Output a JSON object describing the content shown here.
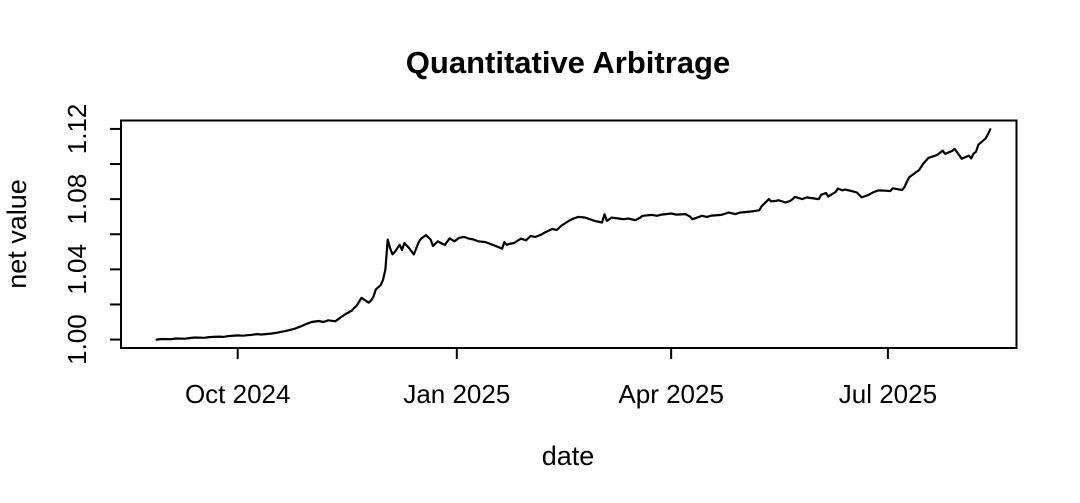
{
  "chart_data": {
    "type": "line",
    "title": "Quantitative Arbitrage",
    "xlabel": "date",
    "ylabel": "net value",
    "grid": false,
    "legend": "none",
    "line_color": "#000000",
    "background_color": "#ffffff",
    "ylim": [
      0.9952,
      1.1248
    ],
    "xlim": [
      "2024-08-13",
      "2025-08-24"
    ],
    "y_ticks": [
      {
        "value": 1.0,
        "label": "1.00"
      },
      {
        "value": 1.02,
        "label": ""
      },
      {
        "value": 1.04,
        "label": "1.04"
      },
      {
        "value": 1.06,
        "label": ""
      },
      {
        "value": 1.08,
        "label": "1.08"
      },
      {
        "value": 1.1,
        "label": ""
      },
      {
        "value": 1.12,
        "label": "1.12"
      }
    ],
    "x_ticks": [
      {
        "date": "2024-10-01",
        "label": "Oct 2024"
      },
      {
        "date": "2025-01-01",
        "label": "Jan 2025"
      },
      {
        "date": "2025-04-01",
        "label": "Apr 2025"
      },
      {
        "date": "2025-07-01",
        "label": "Jul 2025"
      }
    ],
    "series": [
      {
        "name": "net value",
        "points": [
          [
            "2024-08-28",
            1.0
          ],
          [
            "2024-08-30",
            1.0003
          ],
          [
            "2024-09-03",
            1.0002
          ],
          [
            "2024-09-05",
            1.0006
          ],
          [
            "2024-09-09",
            1.0005
          ],
          [
            "2024-09-11",
            1.0009
          ],
          [
            "2024-09-13",
            1.0012
          ],
          [
            "2024-09-17",
            1.001
          ],
          [
            "2024-09-19",
            1.0014
          ],
          [
            "2024-09-23",
            1.0017
          ],
          [
            "2024-09-25",
            1.0015
          ],
          [
            "2024-09-27",
            1.002
          ],
          [
            "2024-10-01",
            1.0024
          ],
          [
            "2024-10-03",
            1.0022
          ],
          [
            "2024-10-07",
            1.0027
          ],
          [
            "2024-10-09",
            1.0031
          ],
          [
            "2024-10-11",
            1.0029
          ],
          [
            "2024-10-15",
            1.0034
          ],
          [
            "2024-10-17",
            1.0038
          ],
          [
            "2024-10-21",
            1.0048
          ],
          [
            "2024-10-23",
            1.0055
          ],
          [
            "2024-10-25",
            1.0062
          ],
          [
            "2024-10-28",
            1.0078
          ],
          [
            "2024-10-30",
            1.009
          ],
          [
            "2024-11-01",
            1.01
          ],
          [
            "2024-11-04",
            1.0106
          ],
          [
            "2024-11-06",
            1.01
          ],
          [
            "2024-11-08",
            1.011
          ],
          [
            "2024-11-11",
            1.0104
          ],
          [
            "2024-11-13",
            1.0124
          ],
          [
            "2024-11-15",
            1.0143
          ],
          [
            "2024-11-18",
            1.0166
          ],
          [
            "2024-11-19",
            1.0181
          ],
          [
            "2024-11-20",
            1.0194
          ],
          [
            "2024-11-22",
            1.0238
          ],
          [
            "2024-11-25",
            1.021
          ],
          [
            "2024-11-26",
            1.0223
          ],
          [
            "2024-11-27",
            1.0245
          ],
          [
            "2024-11-28",
            1.0286
          ],
          [
            "2024-11-30",
            1.031
          ],
          [
            "2024-12-01",
            1.034
          ],
          [
            "2024-12-02",
            1.04
          ],
          [
            "2024-12-03",
            1.057
          ],
          [
            "2024-12-04",
            1.052
          ],
          [
            "2024-12-05",
            1.0485
          ],
          [
            "2024-12-06",
            1.05
          ],
          [
            "2024-12-08",
            1.054
          ],
          [
            "2024-12-09",
            1.051
          ],
          [
            "2024-12-10",
            1.055
          ],
          [
            "2024-12-12",
            1.052
          ],
          [
            "2024-12-14",
            1.0485
          ],
          [
            "2024-12-16",
            1.0555
          ],
          [
            "2024-12-17",
            1.0575
          ],
          [
            "2024-12-19",
            1.0595
          ],
          [
            "2024-12-21",
            1.057
          ],
          [
            "2024-12-22",
            1.0533
          ],
          [
            "2024-12-24",
            1.056
          ],
          [
            "2024-12-26",
            1.0545
          ],
          [
            "2024-12-27",
            1.054
          ],
          [
            "2024-12-29",
            1.0577
          ],
          [
            "2024-12-31",
            1.056
          ],
          [
            "2025-01-02",
            1.058
          ],
          [
            "2025-01-04",
            1.0585
          ],
          [
            "2025-01-06",
            1.0575
          ],
          [
            "2025-01-08",
            1.057
          ],
          [
            "2025-01-10",
            1.056
          ],
          [
            "2025-01-13",
            1.0555
          ],
          [
            "2025-01-15",
            1.0545
          ],
          [
            "2025-01-17",
            1.0535
          ],
          [
            "2025-01-20",
            1.0518
          ],
          [
            "2025-01-21",
            1.0555
          ],
          [
            "2025-01-22",
            1.054
          ],
          [
            "2025-01-23",
            1.0545
          ],
          [
            "2025-01-25",
            1.055
          ],
          [
            "2025-01-28",
            1.0575
          ],
          [
            "2025-01-30",
            1.0565
          ],
          [
            "2025-02-01",
            1.059
          ],
          [
            "2025-02-03",
            1.0585
          ],
          [
            "2025-02-05",
            1.0595
          ],
          [
            "2025-02-07",
            1.061
          ],
          [
            "2025-02-10",
            1.063
          ],
          [
            "2025-02-12",
            1.0625
          ],
          [
            "2025-02-14",
            1.065
          ],
          [
            "2025-02-17",
            1.0676
          ],
          [
            "2025-02-19",
            1.069
          ],
          [
            "2025-02-21",
            1.0699
          ],
          [
            "2025-02-24",
            1.0695
          ],
          [
            "2025-02-26",
            1.0685
          ],
          [
            "2025-02-28",
            1.0676
          ],
          [
            "2025-03-03",
            1.0667
          ],
          [
            "2025-03-04",
            1.0714
          ],
          [
            "2025-03-05",
            1.0676
          ],
          [
            "2025-03-07",
            1.0695
          ],
          [
            "2025-03-10",
            1.069
          ],
          [
            "2025-03-12",
            1.0686
          ],
          [
            "2025-03-14",
            1.069
          ],
          [
            "2025-03-17",
            1.068
          ],
          [
            "2025-03-19",
            1.0695
          ],
          [
            "2025-03-20",
            1.0705
          ],
          [
            "2025-03-24",
            1.071
          ],
          [
            "2025-03-26",
            1.0705
          ],
          [
            "2025-03-28",
            1.0712
          ],
          [
            "2025-04-01",
            1.0718
          ],
          [
            "2025-04-03",
            1.0712
          ],
          [
            "2025-04-07",
            1.0715
          ],
          [
            "2025-04-09",
            1.07
          ],
          [
            "2025-04-10",
            1.0686
          ],
          [
            "2025-04-14",
            1.0705
          ],
          [
            "2025-04-16",
            1.0699
          ],
          [
            "2025-04-18",
            1.0706
          ],
          [
            "2025-04-22",
            1.071
          ],
          [
            "2025-04-24",
            1.0718
          ],
          [
            "2025-04-25",
            1.0724
          ],
          [
            "2025-04-28",
            1.0715
          ],
          [
            "2025-04-30",
            1.0724
          ],
          [
            "2025-05-02",
            1.0726
          ],
          [
            "2025-05-05",
            1.073
          ],
          [
            "2025-05-07",
            1.0734
          ],
          [
            "2025-05-08",
            1.0737
          ],
          [
            "2025-05-09",
            1.076
          ],
          [
            "2025-05-12",
            1.08
          ],
          [
            "2025-05-13",
            1.0787
          ],
          [
            "2025-05-15",
            1.079
          ],
          [
            "2025-05-16",
            1.0794
          ],
          [
            "2025-05-19",
            1.0781
          ],
          [
            "2025-05-21",
            1.079
          ],
          [
            "2025-05-22",
            1.08
          ],
          [
            "2025-05-23",
            1.0813
          ],
          [
            "2025-05-26",
            1.08
          ],
          [
            "2025-05-28",
            1.081
          ],
          [
            "2025-05-30",
            1.0806
          ],
          [
            "2025-06-02",
            1.08
          ],
          [
            "2025-06-03",
            1.0825
          ],
          [
            "2025-06-05",
            1.0835
          ],
          [
            "2025-06-06",
            1.0815
          ],
          [
            "2025-06-09",
            1.084
          ],
          [
            "2025-06-10",
            1.086
          ],
          [
            "2025-06-12",
            1.085
          ],
          [
            "2025-06-13",
            1.0855
          ],
          [
            "2025-06-16",
            1.0845
          ],
          [
            "2025-06-18",
            1.0838
          ],
          [
            "2025-06-20",
            1.081
          ],
          [
            "2025-06-23",
            1.0825
          ],
          [
            "2025-06-25",
            1.084
          ],
          [
            "2025-06-27",
            1.085
          ],
          [
            "2025-06-30",
            1.0848
          ],
          [
            "2025-07-02",
            1.0846
          ],
          [
            "2025-07-03",
            1.0862
          ],
          [
            "2025-07-07",
            1.0852
          ],
          [
            "2025-07-08",
            1.087
          ],
          [
            "2025-07-09",
            1.09
          ],
          [
            "2025-07-10",
            1.0925
          ],
          [
            "2025-07-11",
            1.0935
          ],
          [
            "2025-07-14",
            1.0965
          ],
          [
            "2025-07-16",
            1.1005
          ],
          [
            "2025-07-18",
            1.1035
          ],
          [
            "2025-07-21",
            1.1048
          ],
          [
            "2025-07-22",
            1.1055
          ],
          [
            "2025-07-24",
            1.1076
          ],
          [
            "2025-07-25",
            1.1058
          ],
          [
            "2025-07-28",
            1.1075
          ],
          [
            "2025-07-29",
            1.1086
          ],
          [
            "2025-07-31",
            1.105
          ],
          [
            "2025-08-01",
            1.103
          ],
          [
            "2025-08-04",
            1.1048
          ],
          [
            "2025-08-05",
            1.1032
          ],
          [
            "2025-08-06",
            1.106
          ],
          [
            "2025-08-07",
            1.107
          ],
          [
            "2025-08-08",
            1.111
          ],
          [
            "2025-08-11",
            1.1145
          ],
          [
            "2025-08-12",
            1.117
          ],
          [
            "2025-08-13",
            1.1198
          ]
        ]
      }
    ]
  }
}
